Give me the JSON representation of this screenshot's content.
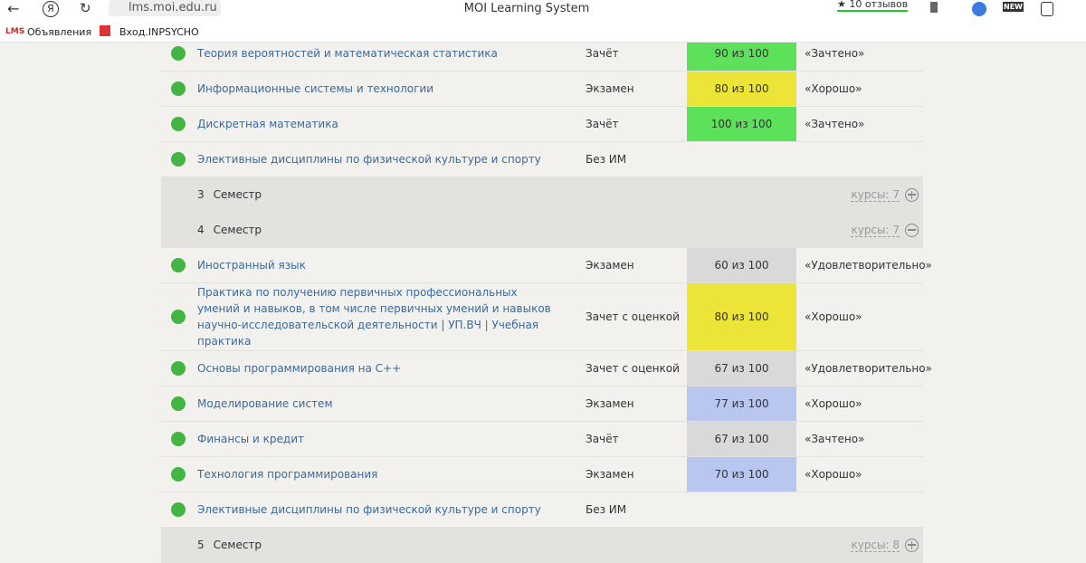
{
  "browser": {
    "yandex_icon": "Я",
    "url": "lms.moi.edu.ru",
    "title": "MOI Learning System",
    "reviews": "★ 10 отзывов",
    "new_badge": "NEW"
  },
  "bookmarks": [
    {
      "icon": "LMS",
      "label": "Объявления"
    },
    {
      "label": "Вход.INPSYCHO"
    }
  ],
  "rows": [
    {
      "kind": "course",
      "name": "Теория вероятностей и математическая статистика",
      "assessment": "Зачёт",
      "score": "90 из 100",
      "score_color": "#5de15a",
      "grade": "«Зачтено»"
    },
    {
      "kind": "course",
      "name": "Информационные системы и технологии",
      "assessment": "Экзамен",
      "score": "80 из 100",
      "score_color": "#ece436",
      "grade": "«Хорошо»"
    },
    {
      "kind": "course",
      "name": "Дискретная математика",
      "assessment": "Зачёт",
      "score": "100 из 100",
      "score_color": "#5de15a",
      "grade": "«Зачтено»"
    },
    {
      "kind": "course",
      "name": "Элективные дисциплины по физической культуре и спорту",
      "assessment": "Без ИМ"
    },
    {
      "kind": "semester",
      "number": "3",
      "label": "Семестр",
      "courses": "курсы: 7",
      "toggle": "plus"
    },
    {
      "kind": "semester",
      "number": "4",
      "label": "Семестр",
      "courses": "курсы: 7",
      "toggle": "minus"
    },
    {
      "kind": "course",
      "name": "Иностранный язык",
      "assessment": "Экзамен",
      "score": "60 из 100",
      "score_color": "#d9d9d9",
      "grade": "«Удовлетворительно»"
    },
    {
      "kind": "course",
      "name": "Практика по получению первичных профессиональных умений и навыков, в том числе первичных умений и навыков научно-исследовательской деятельности | УП.ВЧ | Учебная практика",
      "assessment": "Зачет с оценкой",
      "score": "80 из 100",
      "score_color": "#ece436",
      "grade": "«Хорошо»"
    },
    {
      "kind": "course",
      "name": "Основы программирования на C++",
      "assessment": "Зачет с оценкой",
      "score": "67 из 100",
      "score_color": "#d9d9d9",
      "grade": "«Удовлетворительно»"
    },
    {
      "kind": "course",
      "name": "Моделирование систем",
      "assessment": "Экзамен",
      "score": "77 из 100",
      "score_color": "#b9c6f0",
      "grade": "«Хорошо»"
    },
    {
      "kind": "course",
      "name": "Финансы и кредит",
      "assessment": "Зачёт",
      "score": "67 из 100",
      "score_color": "#d9d9d9",
      "grade": "«Зачтено»"
    },
    {
      "kind": "course",
      "name": "Технология программирования",
      "assessment": "Экзамен",
      "score": "70 из 100",
      "score_color": "#b9c6f0",
      "grade": "«Хорошо»"
    },
    {
      "kind": "course",
      "name": "Элективные дисциплины по физической культуре и спорту",
      "assessment": "Без ИМ"
    },
    {
      "kind": "semester",
      "number": "5",
      "label": "Семестр",
      "courses": "курсы: 8",
      "toggle": "plus"
    }
  ]
}
